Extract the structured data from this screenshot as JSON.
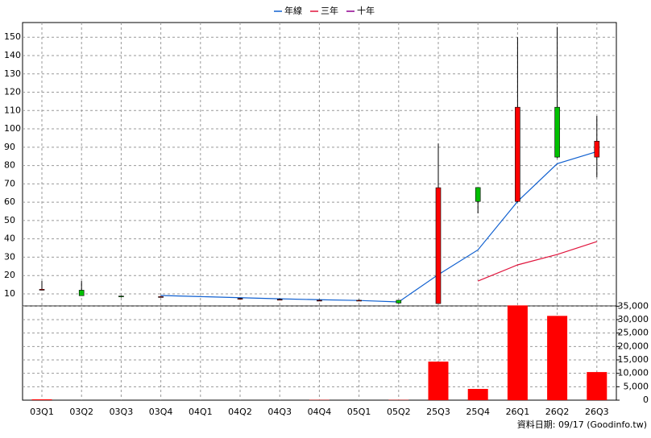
{
  "chart_data": {
    "type": "candlestick",
    "categories": [
      "03Q1",
      "03Q2",
      "03Q3",
      "03Q4",
      "04Q1",
      "04Q2",
      "04Q3",
      "04Q4",
      "05Q1",
      "05Q2",
      "25Q3",
      "25Q4",
      "26Q1",
      "26Q2",
      "26Q3"
    ],
    "open": [
      12,
      12,
      8.8,
      8.5,
      null,
      7.5,
      7,
      6.5,
      6.5,
      6.5,
      4.7,
      68,
      60.4,
      111.8,
      84.6
    ],
    "high": [
      17,
      17,
      9,
      8.8,
      null,
      7.8,
      7.4,
      6.9,
      6.9,
      6.5,
      92,
      68,
      150,
      155.6,
      107
    ],
    "low": [
      12,
      9,
      8,
      8.3,
      null,
      7.3,
      6.6,
      6.2,
      6.1,
      4.7,
      4.7,
      53.9,
      60,
      84,
      73.6
    ],
    "close": [
      12.5,
      9,
      8.5,
      8.5,
      null,
      7.5,
      7,
      6.5,
      6.5,
      5,
      67.9,
      60.4,
      111.8,
      84.6,
      93.3
    ],
    "up_color": "#ff0000",
    "down_color": "#00c000",
    "ylim": [
      3.4,
      158
    ],
    "yticks": [
      10,
      20,
      30,
      40,
      50,
      60,
      70,
      80,
      90,
      100,
      110,
      120,
      130,
      140,
      150
    ],
    "grid": true,
    "legend": "top",
    "series": [
      {
        "name": "年線",
        "color": "#1060d0",
        "values": [
          null,
          null,
          null,
          9.1,
          8.5,
          7.9,
          7.3,
          6.8,
          6.4,
          5.6,
          20.5,
          34,
          60.4,
          81,
          87.6
        ]
      },
      {
        "name": "三年",
        "color": "#e0143c",
        "values": [
          null,
          null,
          null,
          null,
          null,
          null,
          null,
          null,
          null,
          null,
          null,
          17,
          25.8,
          31.5,
          38.5
        ]
      },
      {
        "name": "十年",
        "color": "#900090",
        "values": [
          null,
          null,
          null,
          null,
          null,
          null,
          null,
          null,
          null,
          null,
          null,
          null,
          null,
          null,
          null
        ]
      }
    ],
    "volume": {
      "values": [
        300,
        0,
        0,
        0,
        0,
        0,
        0,
        100,
        0,
        100,
        14360,
        4190,
        35300,
        31400,
        10470
      ],
      "color": "#ff0000",
      "ylim": [
        0,
        36000
      ],
      "yticks": [
        0,
        {
          "value": 5000,
          "label": "5,000"
        },
        {
          "value": 10000,
          "label": "10,000"
        },
        {
          "value": 15000,
          "label": "15,000"
        },
        {
          "value": 20000,
          "label": "20,000"
        },
        {
          "value": 25000,
          "label": "25,000"
        },
        {
          "value": 30000,
          "label": "30,000"
        },
        {
          "value": 35000,
          "label": "35,000"
        }
      ]
    },
    "footnote": "資料日期: 09/17 (Goodinfo.tw)"
  }
}
